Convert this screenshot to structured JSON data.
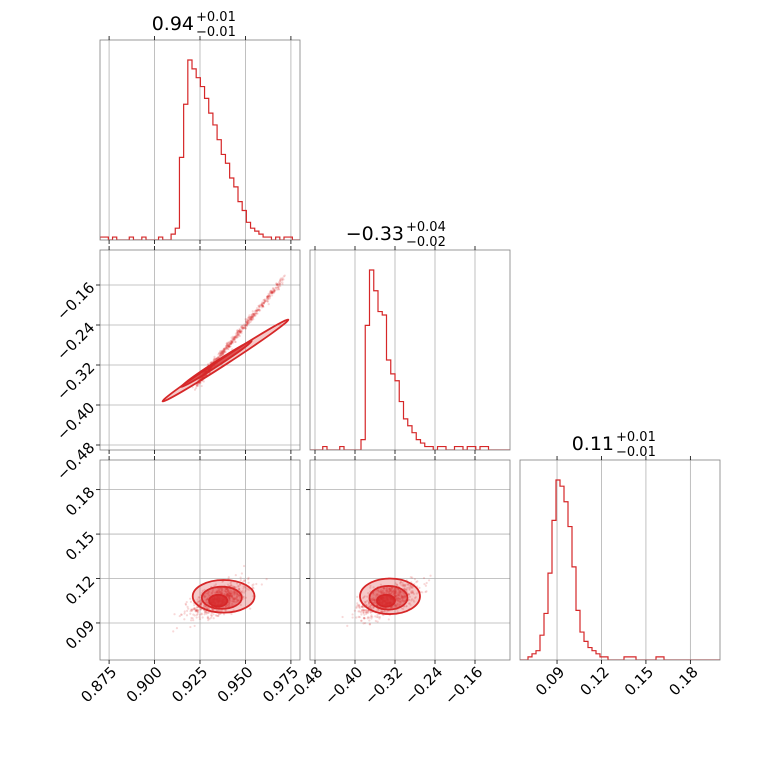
{
  "accent_color": "#d62728",
  "chart_data": {
    "type": "corner",
    "grid": true,
    "parameters": [
      {
        "title_value": "0.94",
        "title_plus": "+0.01",
        "title_minus": "−0.01",
        "range": [
          0.87,
          0.98
        ],
        "ticks": [
          0.875,
          0.9,
          0.925,
          0.95,
          0.975
        ],
        "tick_labels": [
          "0.875",
          "0.900",
          "0.925",
          "0.950",
          "0.975"
        ],
        "hist": {
          "edges_start": 0.87,
          "bin_width": 0.0023,
          "counts": [
            1,
            1,
            0,
            1,
            0,
            0,
            0,
            1,
            0,
            0,
            1,
            0,
            0,
            0,
            1,
            0,
            0,
            2,
            4,
            28,
            46,
            61,
            58,
            55,
            52,
            48,
            43,
            39,
            34,
            29,
            26,
            21,
            18,
            13,
            10,
            6,
            4,
            3,
            2,
            1,
            1,
            0,
            1,
            0,
            1,
            1,
            0,
            0
          ]
        }
      },
      {
        "title_value": "−0.33",
        "title_plus": "+0.04",
        "title_minus": "−0.02",
        "range": [
          -0.49,
          -0.09
        ],
        "ticks": [
          -0.48,
          -0.4,
          -0.32,
          -0.24,
          -0.16
        ],
        "tick_labels": [
          "−0.48",
          "−0.40",
          "−0.32",
          "−0.24",
          "−0.16"
        ],
        "hist": {
          "edges_start": -0.49,
          "bin_width": 0.0085,
          "counts": [
            0,
            0,
            0,
            1,
            0,
            0,
            0,
            1,
            0,
            0,
            0,
            0,
            3,
            36,
            52,
            46,
            40,
            39,
            26,
            22,
            20,
            14,
            9,
            7,
            5,
            3,
            2,
            1,
            1,
            0,
            1,
            1,
            0,
            0,
            1,
            1,
            0,
            1,
            1,
            0,
            1,
            1,
            0,
            0,
            0,
            0,
            0,
            0
          ]
        }
      },
      {
        "title_value": "0.11",
        "title_plus": "+0.01",
        "title_minus": "−0.01",
        "range": [
          0.065,
          0.2
        ],
        "ticks": [
          0.09,
          0.12,
          0.15,
          0.18
        ],
        "tick_labels": [
          "0.09",
          "0.12",
          "0.15",
          "0.18"
        ],
        "hist": {
          "edges_start": 0.065,
          "bin_width": 0.0027,
          "counts": [
            0,
            0,
            1,
            2,
            3,
            8,
            15,
            28,
            45,
            58,
            56,
            51,
            43,
            30,
            16,
            9,
            6,
            4,
            3,
            2,
            1,
            1,
            0,
            0,
            0,
            0,
            1,
            1,
            1,
            0,
            0,
            0,
            0,
            0,
            1,
            1,
            0,
            0,
            0,
            0,
            0,
            0,
            0,
            0,
            0,
            0,
            0,
            0,
            0,
            0
          ]
        }
      }
    ],
    "pairs": [
      {
        "row": 1,
        "col": 0,
        "cloud_x_range": [
          0.925,
          0.97
        ],
        "relation": {
          "type": "linear",
          "slope": 4.4,
          "intercept": -4.42
        },
        "spread": [
          0.01,
          0.004
        ],
        "contours": [
          {
            "level": "outer",
            "center": [
              0.939,
              -0.311
            ],
            "rx": 0.016,
            "ry": 0.0012,
            "angle": 77
          },
          {
            "level": "inner",
            "center": [
              0.934,
              -0.318
            ],
            "rx": 0.009,
            "ry": 0.0008,
            "angle": 77
          }
        ]
      },
      {
        "row": 2,
        "col": 0,
        "cloud_center": [
          0.936,
          0.106
        ],
        "spread": [
          0.008,
          0.006
        ],
        "contours": [
          {
            "level": "outer",
            "center": [
              0.938,
              0.108
            ],
            "rx": 0.017,
            "ry": 0.011
          },
          {
            "level": "mid",
            "center": [
              0.937,
              0.107
            ],
            "rx": 0.011,
            "ry": 0.0075
          },
          {
            "level": "inner",
            "center": [
              0.935,
              0.105
            ],
            "rx": 0.005,
            "ry": 0.004
          }
        ]
      },
      {
        "row": 2,
        "col": 1,
        "cloud_center": [
          -0.335,
          0.106
        ],
        "spread": [
          0.03,
          0.006
        ],
        "contours": [
          {
            "level": "outer",
            "center": [
              -0.33,
              0.108
            ],
            "rx": 0.06,
            "ry": 0.012
          },
          {
            "level": "mid",
            "center": [
              -0.333,
              0.107
            ],
            "rx": 0.038,
            "ry": 0.008
          },
          {
            "level": "inner",
            "center": [
              -0.338,
              0.105
            ],
            "rx": 0.018,
            "ry": 0.004
          }
        ]
      }
    ]
  }
}
